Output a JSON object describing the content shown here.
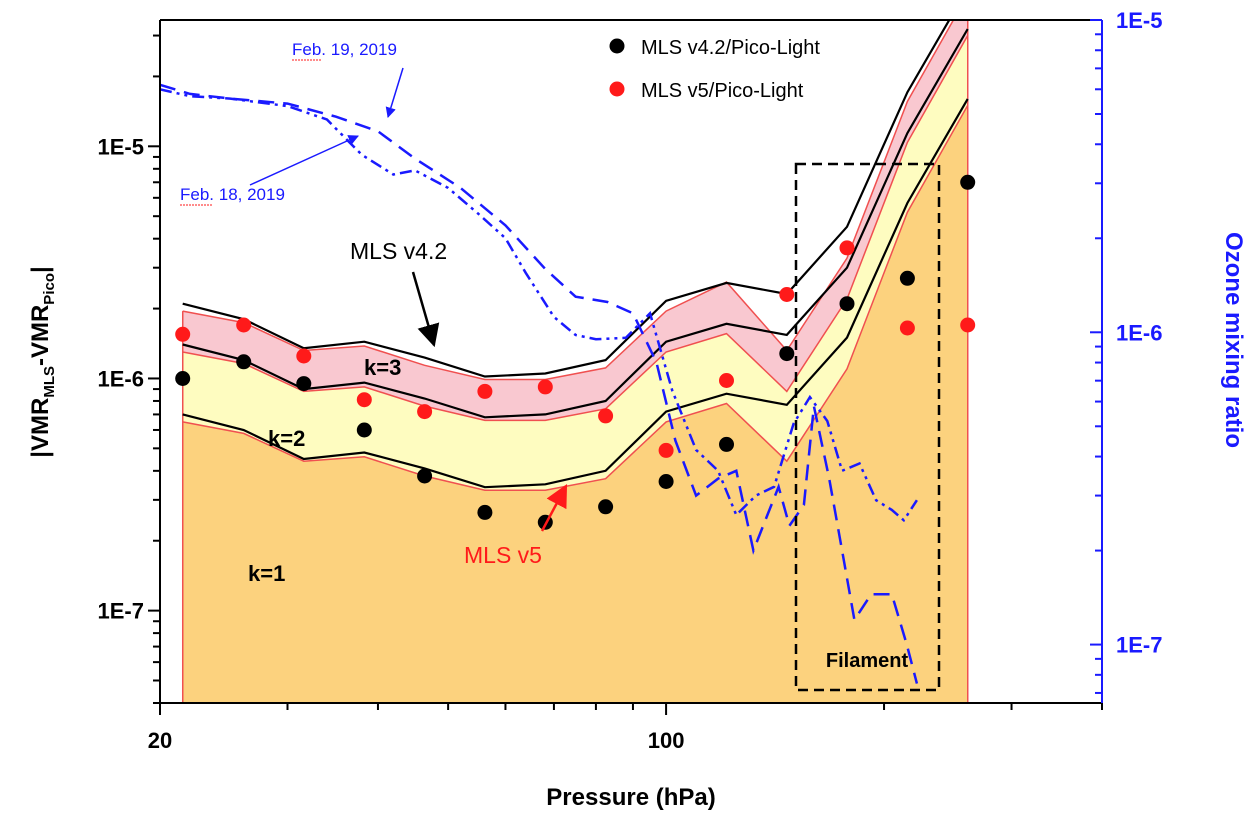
{
  "chart_data": {
    "type": "line",
    "title": "",
    "xlabel": "Pressure (hPa)",
    "ylabel_left": {
      "main": "|VMR",
      "sub1": "MLS",
      "mid": "-VMR",
      "sub2": "Pico",
      "end": "|"
    },
    "ylabel_right": "Ozone mixing ratio",
    "x_scale": "log",
    "xlim": [
      20,
      400
    ],
    "x_tick_labels": [
      {
        "value": 20,
        "label": "20"
      },
      {
        "value": 100,
        "label": "100"
      }
    ],
    "y_left_scale": "log",
    "ylim_left": [
      4e-08,
      3.5e-05
    ],
    "y_left_tick_labels": [
      {
        "value": 1e-05,
        "label": "1E-5"
      },
      {
        "value": 1e-06,
        "label": "1E-6"
      },
      {
        "value": 1e-07,
        "label": "1E-7"
      }
    ],
    "y_right_scale": "log",
    "ylim_right": [
      6.5e-08,
      1e-05
    ],
    "y_right_tick_labels": [
      {
        "value": 1e-05,
        "label": "1E-5"
      },
      {
        "value": 1e-06,
        "label": "1E-6"
      },
      {
        "value": 1e-07,
        "label": "1E-7"
      }
    ],
    "grid": false,
    "legend_position": "top-center",
    "colors": {
      "band_k1": "#fcd27e",
      "band_k2": "#fefcc0",
      "band_k3": "#f9c8d0",
      "band_edge": "#f05050",
      "v42_line": "#000000",
      "dot_v42": "#000000",
      "dot_v5": "#ff1a1a",
      "ozone": "#1a1aff",
      "right_axis": "#1a1aff"
    },
    "x_levels": [
      21.5,
      26.1,
      31.6,
      38.3,
      46.4,
      56.2,
      68.1,
      82.5,
      100,
      121.2,
      146.8,
      177.8,
      215.4,
      261
    ],
    "band_v5": {
      "k1": [
        6.5e-07,
        5.8e-07,
        4.4e-07,
        4.6e-07,
        3.8e-07,
        3.3e-07,
        3.3e-07,
        3.7e-07,
        6.5e-07,
        7.8e-07,
        4.4e-07,
        1.1e-06,
        5.2e-06,
        1.5e-05
      ],
      "k2": [
        1.3e-06,
        1.16e-06,
        8.8e-07,
        9.2e-07,
        7.6e-07,
        6.6e-07,
        6.6e-07,
        7.4e-07,
        1.3e-06,
        1.56e-06,
        8.8e-07,
        2.2e-06,
        1.04e-05,
        3e-05
      ],
      "k3": [
        1.95e-06,
        1.74e-06,
        1.32e-06,
        1.38e-06,
        1.14e-06,
        9.9e-07,
        9.9e-07,
        1.11e-06,
        1.95e-06,
        2.6e-06,
        1.32e-06,
        3.3e-06,
        1.56e-05,
        4.5e-05
      ]
    },
    "band_v42": {
      "k1": [
        7e-07,
        6e-07,
        4.5e-07,
        4.8e-07,
        4.1e-07,
        3.4e-07,
        3.5e-07,
        4e-07,
        7.2e-07,
        8.6e-07,
        7.7e-07,
        1.5e-06,
        5.7e-06,
        1.6e-05
      ],
      "k2": [
        1.4e-06,
        1.2e-06,
        9e-07,
        9.6e-07,
        8.2e-07,
        6.8e-07,
        7e-07,
        8e-07,
        1.44e-06,
        1.72e-06,
        1.54e-06,
        3e-06,
        1.14e-05,
        3.2e-05
      ],
      "k3": [
        2.1e-06,
        1.8e-06,
        1.35e-06,
        1.44e-06,
        1.23e-06,
        1.02e-06,
        1.05e-06,
        1.2e-06,
        2.16e-06,
        2.58e-06,
        2.31e-06,
        4.5e-06,
        1.71e-05,
        4.8e-05
      ]
    },
    "series": [
      {
        "name": "MLS v4.2/Pico-Light",
        "kind": "scatter",
        "points": [
          [
            21.5,
            1e-06
          ],
          [
            26.1,
            1.18e-06
          ],
          [
            31.6,
            9.5e-07
          ],
          [
            38.3,
            6e-07
          ],
          [
            46.4,
            3.8e-07
          ],
          [
            56.2,
            2.65e-07
          ],
          [
            68.1,
            2.4e-07
          ],
          [
            82.5,
            2.8e-07
          ],
          [
            100,
            3.6e-07
          ],
          [
            121.2,
            5.2e-07
          ],
          [
            146.8,
            1.28e-06
          ],
          [
            177.8,
            2.1e-06
          ],
          [
            215.4,
            2.7e-06
          ],
          [
            261,
            7e-06
          ]
        ]
      },
      {
        "name": "MLS v5/Pico-Light",
        "kind": "scatter",
        "points": [
          [
            21.5,
            1.55e-06
          ],
          [
            26.1,
            1.7e-06
          ],
          [
            31.6,
            1.25e-06
          ],
          [
            38.3,
            8.1e-07
          ],
          [
            46.4,
            7.2e-07
          ],
          [
            56.2,
            8.8e-07
          ],
          [
            68.1,
            9.2e-07
          ],
          [
            82.5,
            6.9e-07
          ],
          [
            100,
            4.9e-07
          ],
          [
            121.2,
            9.8e-07
          ],
          [
            146.8,
            2.3e-06
          ],
          [
            177.8,
            3.65e-06
          ],
          [
            215.4,
            1.65e-06
          ],
          [
            261,
            1.7e-06
          ]
        ]
      },
      {
        "name": "Feb. 19, 2019",
        "kind": "ozone-dashed",
        "points": [
          [
            20,
            6.2e-06
          ],
          [
            22,
            5.8e-06
          ],
          [
            25,
            5.6e-06
          ],
          [
            30,
            5.4e-06
          ],
          [
            35,
            4.9e-06
          ],
          [
            40,
            4.4e-06
          ],
          [
            45,
            3.6e-06
          ],
          [
            52,
            2.9e-06
          ],
          [
            60,
            2.2e-06
          ],
          [
            68,
            1.6e-06
          ],
          [
            75,
            1.3e-06
          ],
          [
            83,
            1.25e-06
          ],
          [
            90,
            1.15e-06
          ],
          [
            97,
            8e-07
          ],
          [
            103,
            4.5e-07
          ],
          [
            110,
            3e-07
          ],
          [
            118,
            3.4e-07
          ],
          [
            125,
            3.6e-07
          ],
          [
            132,
            2e-07
          ],
          [
            138,
            2.6e-07
          ],
          [
            143,
            3.2e-07
          ],
          [
            148,
            2.4e-07
          ],
          [
            155,
            2.8e-07
          ],
          [
            160,
            5.8e-07
          ],
          [
            168,
            3.4e-07
          ],
          [
            175,
            2e-07
          ],
          [
            182,
            1.2e-07
          ],
          [
            192,
            1.45e-07
          ],
          [
            205,
            1.45e-07
          ],
          [
            215,
            1e-07
          ],
          [
            222,
            7.5e-08
          ]
        ]
      },
      {
        "name": "Feb. 18, 2019",
        "kind": "ozone-dashdot",
        "points": [
          [
            20,
            6e-06
          ],
          [
            22,
            5.7e-06
          ],
          [
            25,
            5.6e-06
          ],
          [
            30,
            5.3e-06
          ],
          [
            34,
            4.8e-06
          ],
          [
            38,
            3.7e-06
          ],
          [
            42,
            3.2e-06
          ],
          [
            45,
            3.3e-06
          ],
          [
            50,
            2.9e-06
          ],
          [
            55,
            2.4e-06
          ],
          [
            60,
            2e-06
          ],
          [
            64,
            1.55e-06
          ],
          [
            70,
            1.12e-06
          ],
          [
            75,
            9.8e-07
          ],
          [
            80,
            9.5e-07
          ],
          [
            88,
            9.6e-07
          ],
          [
            95,
            1.15e-06
          ],
          [
            102,
            6.5e-07
          ],
          [
            110,
            4.2e-07
          ],
          [
            118,
            3.6e-07
          ],
          [
            125,
            2.6e-07
          ],
          [
            133,
            3e-07
          ],
          [
            141,
            3.2e-07
          ],
          [
            150,
            5.1e-07
          ],
          [
            158,
            6.2e-07
          ],
          [
            167,
            5.2e-07
          ],
          [
            175,
            3.6e-07
          ],
          [
            185,
            3.8e-07
          ],
          [
            195,
            2.9e-07
          ],
          [
            205,
            2.7e-07
          ],
          [
            213,
            2.5e-07
          ],
          [
            222,
            2.9e-07
          ]
        ]
      }
    ],
    "legend": [
      {
        "label": "MLS v4.2/Pico-Light",
        "color": "#000000"
      },
      {
        "label": "MLS v5/Pico-Light",
        "color": "#ff1a1a"
      }
    ],
    "annotations": {
      "k3": "k=3",
      "k2": "k=2",
      "k1": "k=1",
      "mls_v42": "MLS v4.2",
      "mls_v5": "MLS v5",
      "feb19": "Feb. 19, 2019",
      "feb18": "Feb. 18, 2019",
      "filament": "Filament"
    }
  }
}
